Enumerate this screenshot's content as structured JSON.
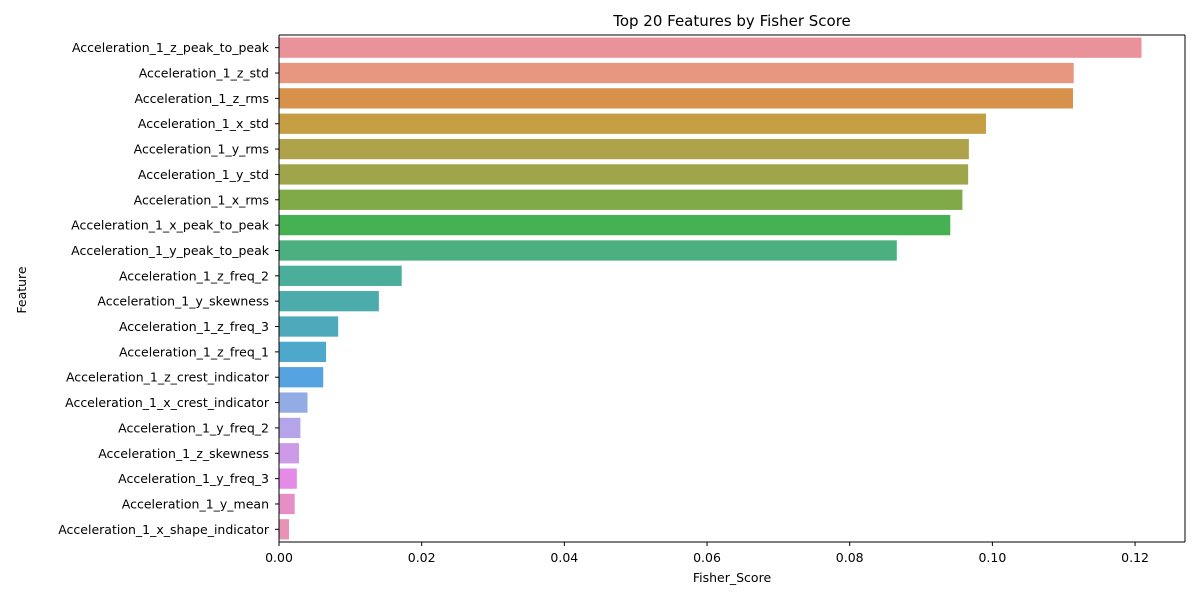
{
  "chart_data": {
    "type": "bar",
    "orientation": "horizontal",
    "title": "Top 20 Features by Fisher Score",
    "xlabel": "Fisher_Score",
    "ylabel": "Feature",
    "xlim": [
      0,
      0.127
    ],
    "xticks": [
      0.0,
      0.02,
      0.04,
      0.06,
      0.08,
      0.1,
      0.12
    ],
    "xtick_labels": [
      "0.00",
      "0.02",
      "0.04",
      "0.06",
      "0.08",
      "0.10",
      "0.12"
    ],
    "grid": false,
    "categories": [
      "Acceleration_1_z_peak_to_peak",
      "Acceleration_1_z_std",
      "Acceleration_1_z_rms",
      "Acceleration_1_x_std",
      "Acceleration_1_y_rms",
      "Acceleration_1_y_std",
      "Acceleration_1_x_rms",
      "Acceleration_1_x_peak_to_peak",
      "Acceleration_1_y_peak_to_peak",
      "Acceleration_1_z_freq_2",
      "Acceleration_1_y_skewness",
      "Acceleration_1_z_freq_3",
      "Acceleration_1_z_freq_1",
      "Acceleration_1_z_crest_indicator",
      "Acceleration_1_x_crest_indicator",
      "Acceleration_1_y_freq_2",
      "Acceleration_1_z_skewness",
      "Acceleration_1_y_freq_3",
      "Acceleration_1_y_mean",
      "Acceleration_1_x_shape_indicator"
    ],
    "values": [
      0.1209,
      0.1114,
      0.1113,
      0.0991,
      0.0967,
      0.0966,
      0.0958,
      0.0941,
      0.0866,
      0.0172,
      0.014,
      0.0083,
      0.0066,
      0.0062,
      0.004,
      0.003,
      0.0028,
      0.0025,
      0.0022,
      0.0014
    ],
    "colors": [
      "#ea9299",
      "#e7977f",
      "#d8914a",
      "#c59e44",
      "#aea24a",
      "#9ea54a",
      "#80aa48",
      "#45b153",
      "#4caf80",
      "#4bae9b",
      "#4cacac",
      "#4eaaba",
      "#4ea8cb",
      "#55a3e0",
      "#94ace4",
      "#b5a4e8",
      "#cc9ae6",
      "#e38be6",
      "#e68ec6",
      "#e892b5"
    ]
  }
}
